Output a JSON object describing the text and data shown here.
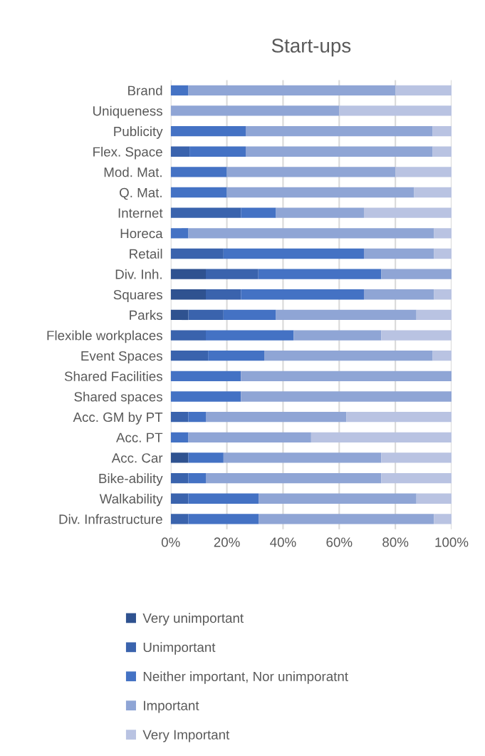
{
  "chart_data": {
    "type": "bar",
    "title": "Start-ups",
    "orientation": "horizontal",
    "stacked": true,
    "categories": [
      "Brand",
      "Uniqueness",
      "Publicity",
      "Flex. Space",
      "Mod. Mat.",
      "Q. Mat.",
      "Internet",
      "Horeca",
      "Retail",
      "Div. Inh.",
      "Squares",
      "Parks",
      "Flexible workplaces",
      "Event Spaces",
      "Shared Facilities",
      "Shared spaces",
      "Acc. GM by PT",
      "Acc. PT",
      "Acc. Car",
      "Bike-ability",
      "Walkability",
      "Div. Infrastructure"
    ],
    "series": [
      {
        "name": "Very unimportant",
        "color": "#2f5290",
        "values": [
          0,
          0,
          0,
          0,
          0,
          0,
          0,
          0,
          0,
          12.5,
          12.5,
          6.3,
          0,
          0,
          0,
          0,
          0,
          0,
          6.3,
          0,
          0,
          0
        ]
      },
      {
        "name": "Unimportant",
        "color": "#3a63ad",
        "values": [
          0,
          0,
          0,
          6.7,
          0,
          0,
          25,
          0,
          18.8,
          18.7,
          12.5,
          12.5,
          12.5,
          13.3,
          0,
          0,
          6.3,
          0,
          0,
          6.3,
          6.3,
          6.3
        ]
      },
      {
        "name": "Neither important, Nor unimporatnt",
        "color": "#4472c4",
        "values": [
          6.3,
          0,
          26.7,
          20,
          20,
          20,
          12.5,
          6.3,
          50,
          43.8,
          43.8,
          18.7,
          31.3,
          20,
          25,
          25,
          6.2,
          6.3,
          12.5,
          6.2,
          25,
          25
        ]
      },
      {
        "name": "Important",
        "color": "#8fa5d5",
        "values": [
          73.7,
          60,
          66.6,
          66.6,
          60,
          66.7,
          31.3,
          87.5,
          25,
          25,
          25,
          50,
          31.2,
          60,
          75,
          75,
          50,
          43.7,
          56.2,
          62.5,
          56.2,
          62.4
        ]
      },
      {
        "name": "Very Important",
        "color": "#b9c3e2",
        "values": [
          20,
          40,
          6.7,
          6.7,
          20,
          13.3,
          31.2,
          6.2,
          6.2,
          0,
          6.2,
          12.5,
          25,
          6.7,
          0,
          0,
          37.5,
          50,
          25,
          25,
          12.5,
          6.3
        ]
      }
    ],
    "xlim": [
      0,
      100
    ],
    "xticks": [
      {
        "value": 0,
        "label": "0%"
      },
      {
        "value": 20,
        "label": "20%"
      },
      {
        "value": 40,
        "label": "40%"
      },
      {
        "value": 60,
        "label": "60%"
      },
      {
        "value": 80,
        "label": "80%"
      },
      {
        "value": 100,
        "label": "100%"
      }
    ],
    "grid": "x",
    "legend": "bottom"
  }
}
